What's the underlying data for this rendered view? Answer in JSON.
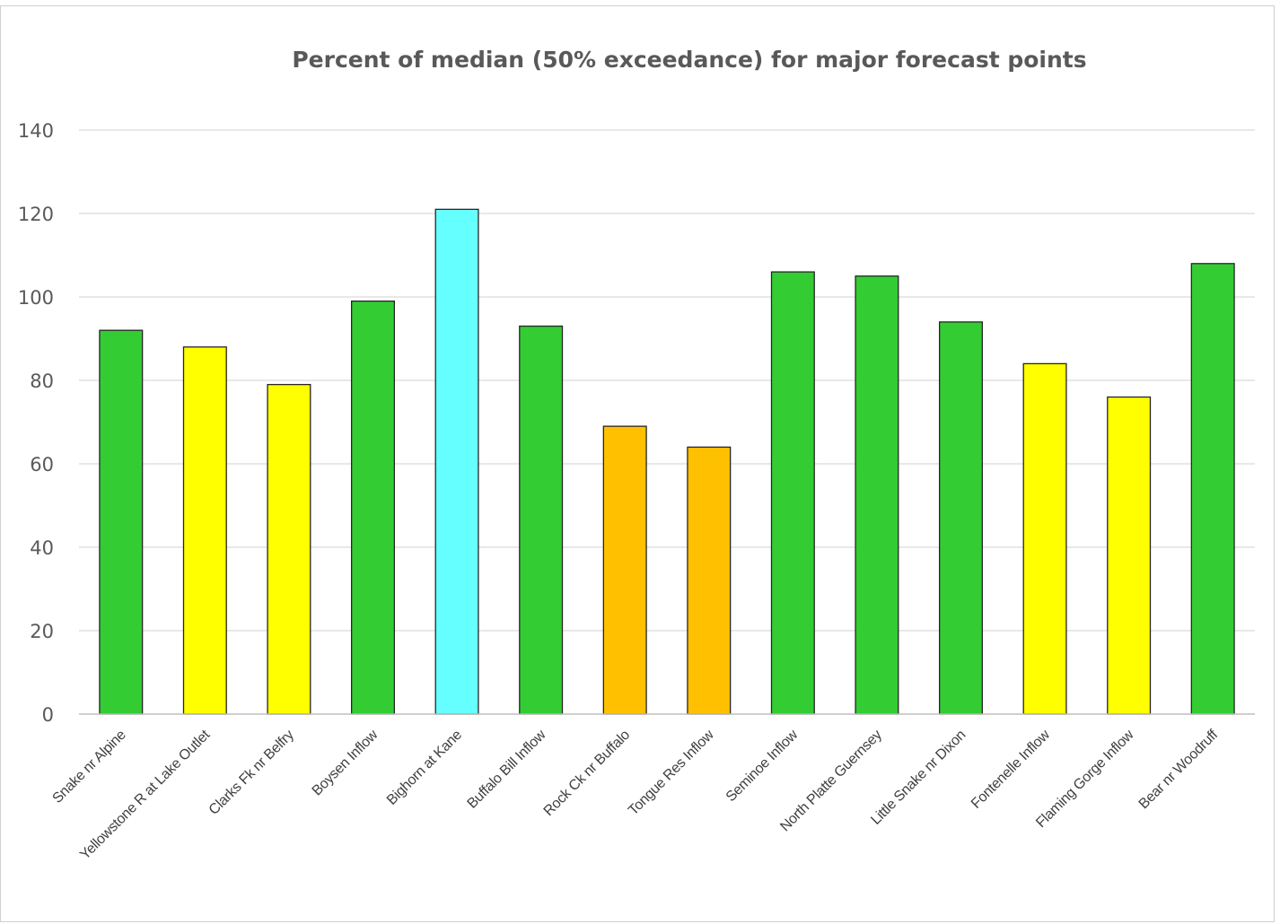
{
  "chart_data": {
    "type": "bar",
    "title": "Percent of median (50% exceedance) for major forecast points",
    "xlabel": "",
    "ylabel": "",
    "ylim": [
      0,
      140
    ],
    "yticks": [
      0,
      20,
      40,
      60,
      80,
      100,
      120,
      140
    ],
    "grid": true,
    "legend": "none",
    "categories": [
      "Snake nr Alpine",
      "Yellowstone R at Lake Outlet",
      "Clarks Fk nr Belfry",
      "Boysen Inflow",
      "Bighorn at Kane",
      "Buffalo Bill Inflow",
      "Rock Ck nr Buffalo",
      "Tongue Res Inflow",
      "Seminoe Inflow",
      "North Platte Guernsey",
      "Little Snake nr Dixon",
      "Fontenelle Inflow",
      "Flaming Gorge Inflow",
      "Bear nr Woodruff"
    ],
    "values": [
      92,
      88,
      79,
      99,
      121,
      93,
      69,
      64,
      106,
      105,
      94,
      84,
      76,
      108
    ],
    "bar_colors": [
      "#33cc33",
      "#ffff00",
      "#ffff00",
      "#33cc33",
      "#66ffff",
      "#33cc33",
      "#ffc000",
      "#ffc000",
      "#33cc33",
      "#33cc33",
      "#33cc33",
      "#ffff00",
      "#ffff00",
      "#33cc33"
    ]
  },
  "colors": {
    "gridline": "#d9d9d9",
    "axis": "#bfbfbf",
    "bar_outline": "#262626"
  }
}
